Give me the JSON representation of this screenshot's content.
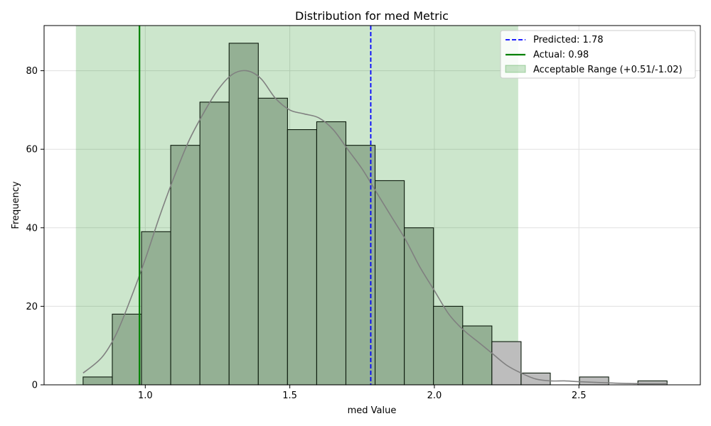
{
  "chart_data": {
    "type": "bar",
    "title": "Distribution for med Metric",
    "xlabel": "med Value",
    "ylabel": "Frequency",
    "xlim": [
      0.65,
      2.92
    ],
    "ylim": [
      0,
      91.5
    ],
    "xticks": [
      {
        "value": 1.0,
        "label": "1.0"
      },
      {
        "value": 1.5,
        "label": "1.5"
      },
      {
        "value": 2.0,
        "label": "2.0"
      },
      {
        "value": 2.5,
        "label": "2.5"
      }
    ],
    "yticks": [
      {
        "value": 0,
        "label": "0"
      },
      {
        "value": 20,
        "label": "20"
      },
      {
        "value": 40,
        "label": "40"
      },
      {
        "value": 60,
        "label": "60"
      },
      {
        "value": 80,
        "label": "80"
      }
    ],
    "grid": true,
    "legend_position": "top-right",
    "bins": [
      {
        "x0": 0.785,
        "x1": 0.886,
        "count": 2
      },
      {
        "x0": 0.886,
        "x1": 0.987,
        "count": 18
      },
      {
        "x0": 0.987,
        "x1": 1.088,
        "count": 39
      },
      {
        "x0": 1.088,
        "x1": 1.189,
        "count": 61
      },
      {
        "x0": 1.189,
        "x1": 1.29,
        "count": 72
      },
      {
        "x0": 1.29,
        "x1": 1.391,
        "count": 87
      },
      {
        "x0": 1.391,
        "x1": 1.492,
        "count": 73
      },
      {
        "x0": 1.492,
        "x1": 1.593,
        "count": 65
      },
      {
        "x0": 1.593,
        "x1": 1.694,
        "count": 67
      },
      {
        "x0": 1.694,
        "x1": 1.795,
        "count": 61
      },
      {
        "x0": 1.795,
        "x1": 1.896,
        "count": 52
      },
      {
        "x0": 1.896,
        "x1": 1.997,
        "count": 40
      },
      {
        "x0": 1.997,
        "x1": 2.098,
        "count": 20
      },
      {
        "x0": 2.098,
        "x1": 2.199,
        "count": 15
      },
      {
        "x0": 2.199,
        "x1": 2.3,
        "count": 11
      },
      {
        "x0": 2.3,
        "x1": 2.401,
        "count": 3
      },
      {
        "x0": 2.401,
        "x1": 2.502,
        "count": 0
      },
      {
        "x0": 2.502,
        "x1": 2.603,
        "count": 2
      },
      {
        "x0": 2.603,
        "x1": 2.704,
        "count": 0
      },
      {
        "x0": 2.704,
        "x1": 2.805,
        "count": 1
      }
    ],
    "kde": {
      "x": [
        0.785,
        0.85,
        0.9,
        0.95,
        1.0,
        1.05,
        1.1,
        1.15,
        1.2,
        1.25,
        1.3,
        1.35,
        1.4,
        1.45,
        1.5,
        1.55,
        1.6,
        1.65,
        1.7,
        1.75,
        1.8,
        1.85,
        1.9,
        1.95,
        2.0,
        2.05,
        2.1,
        2.15,
        2.2,
        2.25,
        2.3,
        2.35,
        2.4,
        2.45,
        2.5,
        2.6,
        2.7,
        2.805
      ],
      "y": [
        3,
        7,
        13,
        22,
        32,
        43,
        53,
        62,
        69,
        75,
        79,
        80,
        78,
        73,
        70,
        69,
        68,
        65,
        60,
        55,
        49,
        43,
        37,
        30,
        24,
        18,
        14,
        11,
        8,
        5,
        3,
        1.5,
        1,
        1,
        0.8,
        0.5,
        0.3,
        0.3
      ]
    },
    "predicted": {
      "value": 1.78,
      "label": "Predicted: 1.78",
      "color": "#0000ff"
    },
    "actual": {
      "value": 0.98,
      "label": "Actual: 0.98",
      "color": "#008000"
    },
    "acceptable_range": {
      "min": 0.76,
      "max": 2.29,
      "label": "Acceptable Range (+0.51/-1.02)",
      "color": "#008000"
    },
    "colors": {
      "bar_inside": "#94b094",
      "bar_outside": "#bdbdbd",
      "bar_edge": "#0c1a0c",
      "kde": "#808080",
      "grid": "#e0e0e0"
    }
  }
}
